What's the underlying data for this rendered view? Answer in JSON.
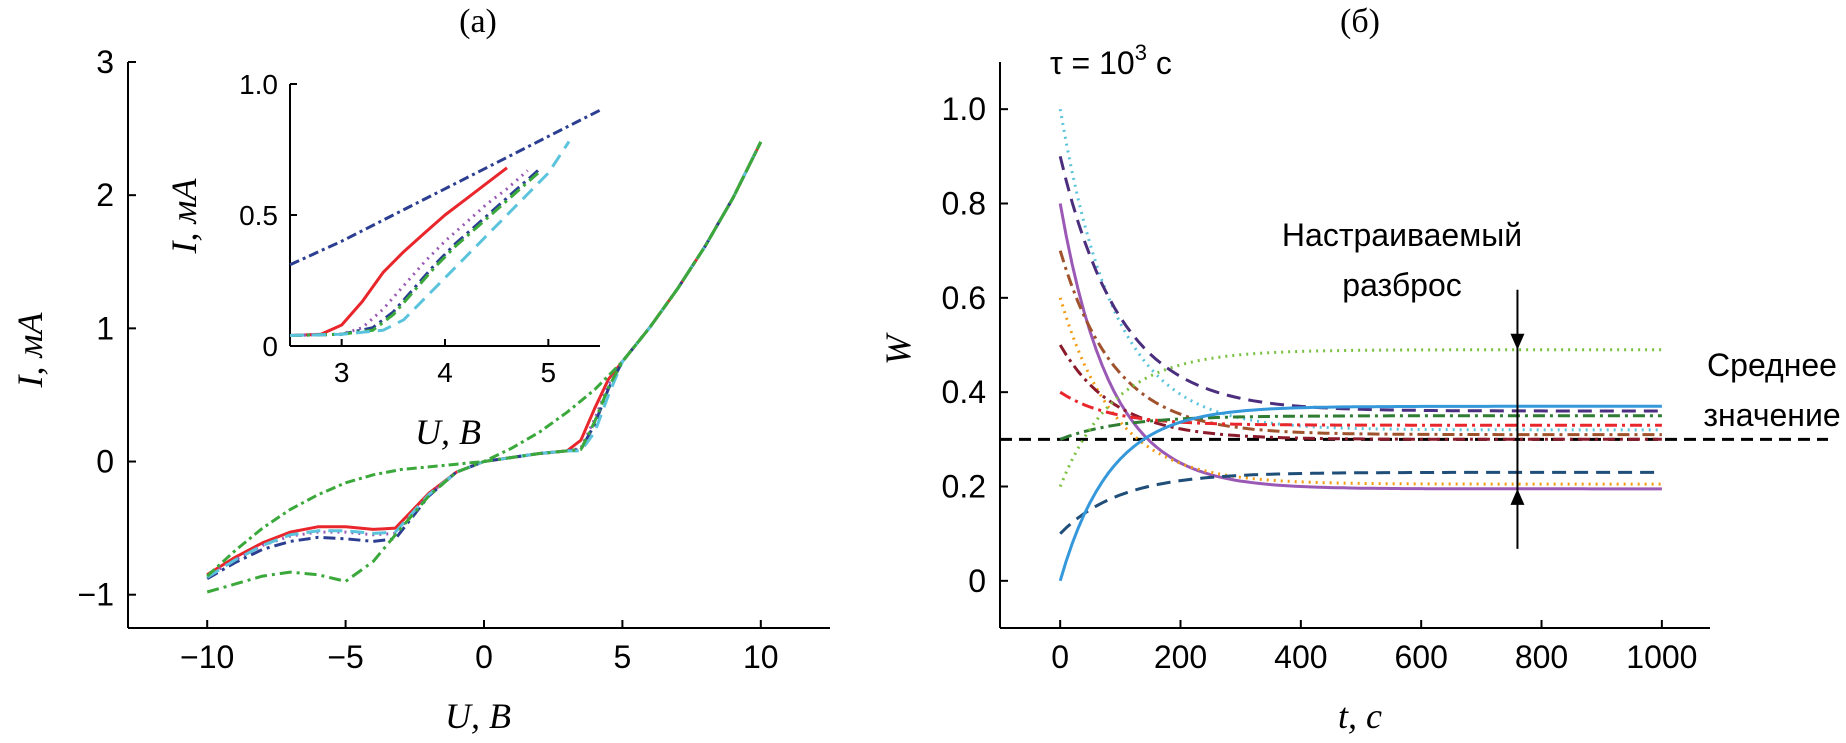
{
  "chart_data": [
    {
      "panel": "a",
      "panel_label": "(а)",
      "type": "line",
      "xlabel": "U, В",
      "ylabel": "I, мА",
      "xlim": [
        -12.5,
        12.5
      ],
      "ylim": [
        -1.25,
        3.0
      ],
      "xticks": [
        -10,
        -5,
        0,
        5,
        10
      ],
      "xtick_labels": [
        "−10",
        "−5",
        "0",
        "5",
        "10"
      ],
      "yticks": [
        -1,
        0,
        1,
        2,
        3
      ],
      "ytick_labels": [
        "−1",
        "0",
        "1",
        "2",
        "3"
      ],
      "series": [
        {
          "style": "solid",
          "color": "#e8262b",
          "x": [
            -10,
            -9,
            -8,
            -7,
            -6,
            -5,
            -4,
            -3.2,
            -2,
            -1,
            0,
            1,
            2,
            3,
            3.5,
            4,
            4.5,
            5,
            6,
            7,
            8,
            9,
            10
          ],
          "y": [
            -0.85,
            -0.72,
            -0.61,
            -0.53,
            -0.49,
            -0.49,
            -0.51,
            -0.5,
            -0.24,
            -0.08,
            0,
            0.03,
            0.06,
            0.08,
            0.16,
            0.4,
            0.62,
            0.75,
            1.01,
            1.3,
            1.62,
            1.98,
            2.4
          ]
        },
        {
          "style": "dotted",
          "color": "#9b59b6",
          "x": [
            -10,
            -9,
            -8,
            -7,
            -6,
            -5,
            -4,
            -3.2,
            -2,
            -1,
            0,
            1,
            2,
            3,
            3.5,
            4,
            4.5,
            5,
            6,
            7,
            8,
            9,
            10
          ],
          "y": [
            -0.86,
            -0.74,
            -0.63,
            -0.56,
            -0.53,
            -0.53,
            -0.55,
            -0.54,
            -0.25,
            -0.08,
            0,
            0.03,
            0.06,
            0.08,
            0.1,
            0.32,
            0.58,
            0.75,
            1.01,
            1.3,
            1.62,
            1.98,
            2.4
          ]
        },
        {
          "style": "dashdot",
          "color": "#2c3e91",
          "x": [
            -10,
            -9,
            -8,
            -7,
            -6,
            -5,
            -4,
            -3.2,
            -2,
            -1,
            0,
            1,
            2,
            3,
            3.5,
            4,
            4.5,
            5,
            6,
            7,
            8,
            9,
            10
          ],
          "y": [
            -0.88,
            -0.76,
            -0.66,
            -0.6,
            -0.57,
            -0.58,
            -0.6,
            -0.58,
            -0.26,
            -0.08,
            0,
            0.03,
            0.06,
            0.08,
            0.09,
            0.28,
            0.55,
            0.75,
            1.01,
            1.3,
            1.62,
            1.98,
            2.4
          ]
        },
        {
          "style": "dashed",
          "color": "#5bc4dc",
          "x": [
            -10,
            -9,
            -8,
            -7,
            -6,
            -5,
            -4,
            -3.2,
            -2,
            -1,
            0,
            1,
            2,
            3,
            3.5,
            4,
            4.5,
            5,
            6,
            7,
            8,
            9,
            10
          ],
          "y": [
            -0.87,
            -0.74,
            -0.63,
            -0.55,
            -0.52,
            -0.52,
            -0.54,
            -0.53,
            -0.25,
            -0.08,
            0,
            0.03,
            0.06,
            0.08,
            0.08,
            0.22,
            0.5,
            0.75,
            1.01,
            1.3,
            1.62,
            1.98,
            2.4
          ]
        },
        {
          "style": "dashdot",
          "color": "#3aa83a",
          "x": [
            -10,
            -9,
            -8,
            -7,
            -6,
            -5,
            -4,
            -3.2,
            -2,
            -1,
            0,
            1,
            2,
            3,
            3.5,
            4,
            4.5,
            5,
            6,
            7,
            8,
            9,
            10
          ],
          "y": [
            -0.98,
            -0.92,
            -0.86,
            -0.83,
            -0.85,
            -0.9,
            -0.75,
            -0.55,
            -0.26,
            -0.08,
            0,
            0.03,
            0.06,
            0.08,
            0.09,
            0.3,
            0.56,
            0.75,
            1.01,
            1.3,
            1.62,
            1.98,
            2.4
          ]
        },
        {
          "style": "upper",
          "color": "#3aa83a",
          "x": [
            -10,
            -9,
            -8,
            -7,
            -6,
            -5,
            -4,
            -3,
            -2,
            -1,
            0,
            1,
            2,
            3,
            4,
            5,
            6,
            7,
            8,
            9,
            10
          ],
          "y": [
            -0.86,
            -0.67,
            -0.5,
            -0.36,
            -0.25,
            -0.16,
            -0.1,
            -0.06,
            -0.04,
            -0.02,
            0,
            0.1,
            0.22,
            0.37,
            0.54,
            0.75,
            1.01,
            1.3,
            1.62,
            1.98,
            2.4
          ]
        }
      ],
      "inset": {
        "xlabel": "U, В",
        "ylabel": "I, мА",
        "xlim": [
          2.5,
          5.5
        ],
        "ylim": [
          0,
          1.0
        ],
        "xticks": [
          3,
          4,
          5
        ],
        "xtick_labels": [
          "3",
          "4",
          "5"
        ],
        "yticks": [
          0,
          0.5,
          1.0
        ],
        "ytick_labels": [
          "0",
          "0.5",
          "1.0"
        ],
        "series": [
          {
            "style": "solid",
            "color": "#e8262b",
            "x": [
              2.5,
              2.8,
              3.0,
              3.2,
              3.4,
              3.6,
              3.8,
              4.0,
              4.2,
              4.4,
              4.6
            ],
            "y": [
              0.04,
              0.045,
              0.08,
              0.17,
              0.28,
              0.36,
              0.43,
              0.5,
              0.56,
              0.62,
              0.68
            ]
          },
          {
            "style": "dotted",
            "color": "#9b59b6",
            "x": [
              2.5,
              3.0,
              3.2,
              3.4,
              3.6,
              3.8,
              4.0,
              4.2,
              4.4,
              4.6,
              4.8
            ],
            "y": [
              0.04,
              0.045,
              0.07,
              0.14,
              0.23,
              0.32,
              0.4,
              0.47,
              0.54,
              0.6,
              0.67
            ]
          },
          {
            "style": "dashdot",
            "color": "#2c3e91",
            "x": [
              2.5,
              3.0,
              3.3,
              3.5,
              3.7,
              3.9,
              4.1,
              4.3,
              4.5,
              4.7,
              4.9
            ],
            "y": [
              0.04,
              0.045,
              0.07,
              0.13,
              0.22,
              0.31,
              0.39,
              0.46,
              0.53,
              0.6,
              0.67
            ]
          },
          {
            "style": "dashdot",
            "color": "#3aa83a",
            "x": [
              2.5,
              3.0,
              3.3,
              3.5,
              3.7,
              3.9,
              4.1,
              4.3,
              4.5,
              4.7,
              4.9
            ],
            "y": [
              0.04,
              0.045,
              0.06,
              0.12,
              0.21,
              0.3,
              0.38,
              0.45,
              0.52,
              0.59,
              0.66
            ]
          },
          {
            "style": "dashed",
            "color": "#5bc4dc",
            "x": [
              2.5,
              3.0,
              3.4,
              3.6,
              3.8,
              4.0,
              4.2,
              4.4,
              4.6,
              4.8,
              5.0,
              5.2
            ],
            "y": [
              0.04,
              0.045,
              0.06,
              0.1,
              0.18,
              0.26,
              0.34,
              0.42,
              0.5,
              0.58,
              0.66,
              0.78
            ]
          },
          {
            "style": "upper",
            "color": "#2c3e91",
            "x": [
              2.5,
              3.0,
              3.5,
              4.0,
              4.5,
              5.0,
              5.5
            ],
            "y": [
              0.31,
              0.4,
              0.5,
              0.6,
              0.7,
              0.8,
              0.9
            ]
          }
        ]
      }
    },
    {
      "panel": "b",
      "panel_label": "(б)",
      "type": "line",
      "xlabel": "t, с",
      "ylabel": "W",
      "xlim": [
        -100,
        1080
      ],
      "ylim": [
        -0.1,
        1.1
      ],
      "xticks": [
        0,
        200,
        400,
        600,
        800,
        1000
      ],
      "xtick_labels": [
        "0",
        "200",
        "400",
        "600",
        "800",
        "1000"
      ],
      "yticks": [
        0,
        0.2,
        0.4,
        0.6,
        0.8,
        1.0
      ],
      "ytick_labels": [
        "0",
        "0.2",
        "0.4",
        "0.6",
        "0.8",
        "1.0"
      ],
      "tau_label": "τ = 10",
      "tau_exp": "3",
      "tau_unit": " с",
      "mean_value": 0.3,
      "spread_top": 0.49,
      "spread_bottom": 0.195,
      "arrow_x": 760,
      "annotation_spread": [
        "Настраиваемый",
        "разброс"
      ],
      "annotation_mean": [
        "Среднее",
        "значение"
      ],
      "series": [
        {
          "style": "dotted",
          "color": "#5bc4dc",
          "w0": 1.0,
          "w_inf": 0.32,
          "k": 0.011
        },
        {
          "style": "dashed",
          "color": "#4b2f7e",
          "w0": 0.9,
          "w_inf": 0.36,
          "k": 0.01
        },
        {
          "style": "solid",
          "color": "#9b59b6",
          "w0": 0.8,
          "w_inf": 0.195,
          "k": 0.012
        },
        {
          "style": "dashdot",
          "color": "#a0522d",
          "w0": 0.7,
          "w_inf": 0.31,
          "k": 0.011
        },
        {
          "style": "dotted",
          "color": "#f39c12",
          "w0": 0.6,
          "w_inf": 0.205,
          "k": 0.011
        },
        {
          "style": "dashdot",
          "color": "#8b1a2b",
          "w0": 0.5,
          "w_inf": 0.3,
          "k": 0.011
        },
        {
          "style": "dashdot",
          "color": "#e8262b",
          "w0": 0.4,
          "w_inf": 0.33,
          "k": 0.012
        },
        {
          "style": "dashdot",
          "color": "#2e7d32",
          "w0": 0.3,
          "w_inf": 0.35,
          "k": 0.01
        },
        {
          "style": "dotted",
          "color": "#7ac142",
          "w0": 0.2,
          "w_inf": 0.49,
          "k": 0.011
        },
        {
          "style": "dashed",
          "color": "#1f4e79",
          "w0": 0.1,
          "w_inf": 0.23,
          "k": 0.01
        },
        {
          "style": "solid",
          "color": "#3498db",
          "w0": 0.0,
          "w_inf": 0.37,
          "k": 0.012
        }
      ]
    }
  ]
}
